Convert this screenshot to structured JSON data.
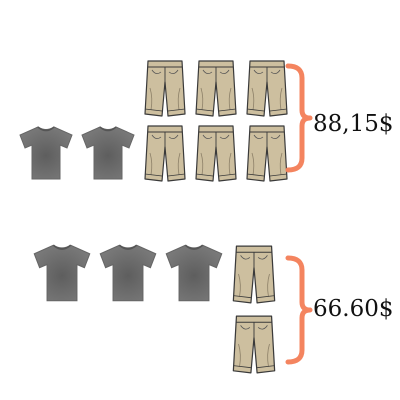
{
  "groups": [
    {
      "price": "88,15$",
      "tshirts": 2,
      "shorts": 6
    },
    {
      "price": "66.60$",
      "tshirts": 3,
      "shorts": 2
    }
  ],
  "colors": {
    "bracket": "#f4845f",
    "tshirt": "#7a7a7a",
    "shorts": "#cdbf9f"
  },
  "icons": {
    "tshirt": "tshirt-icon",
    "shorts": "shorts-icon"
  }
}
